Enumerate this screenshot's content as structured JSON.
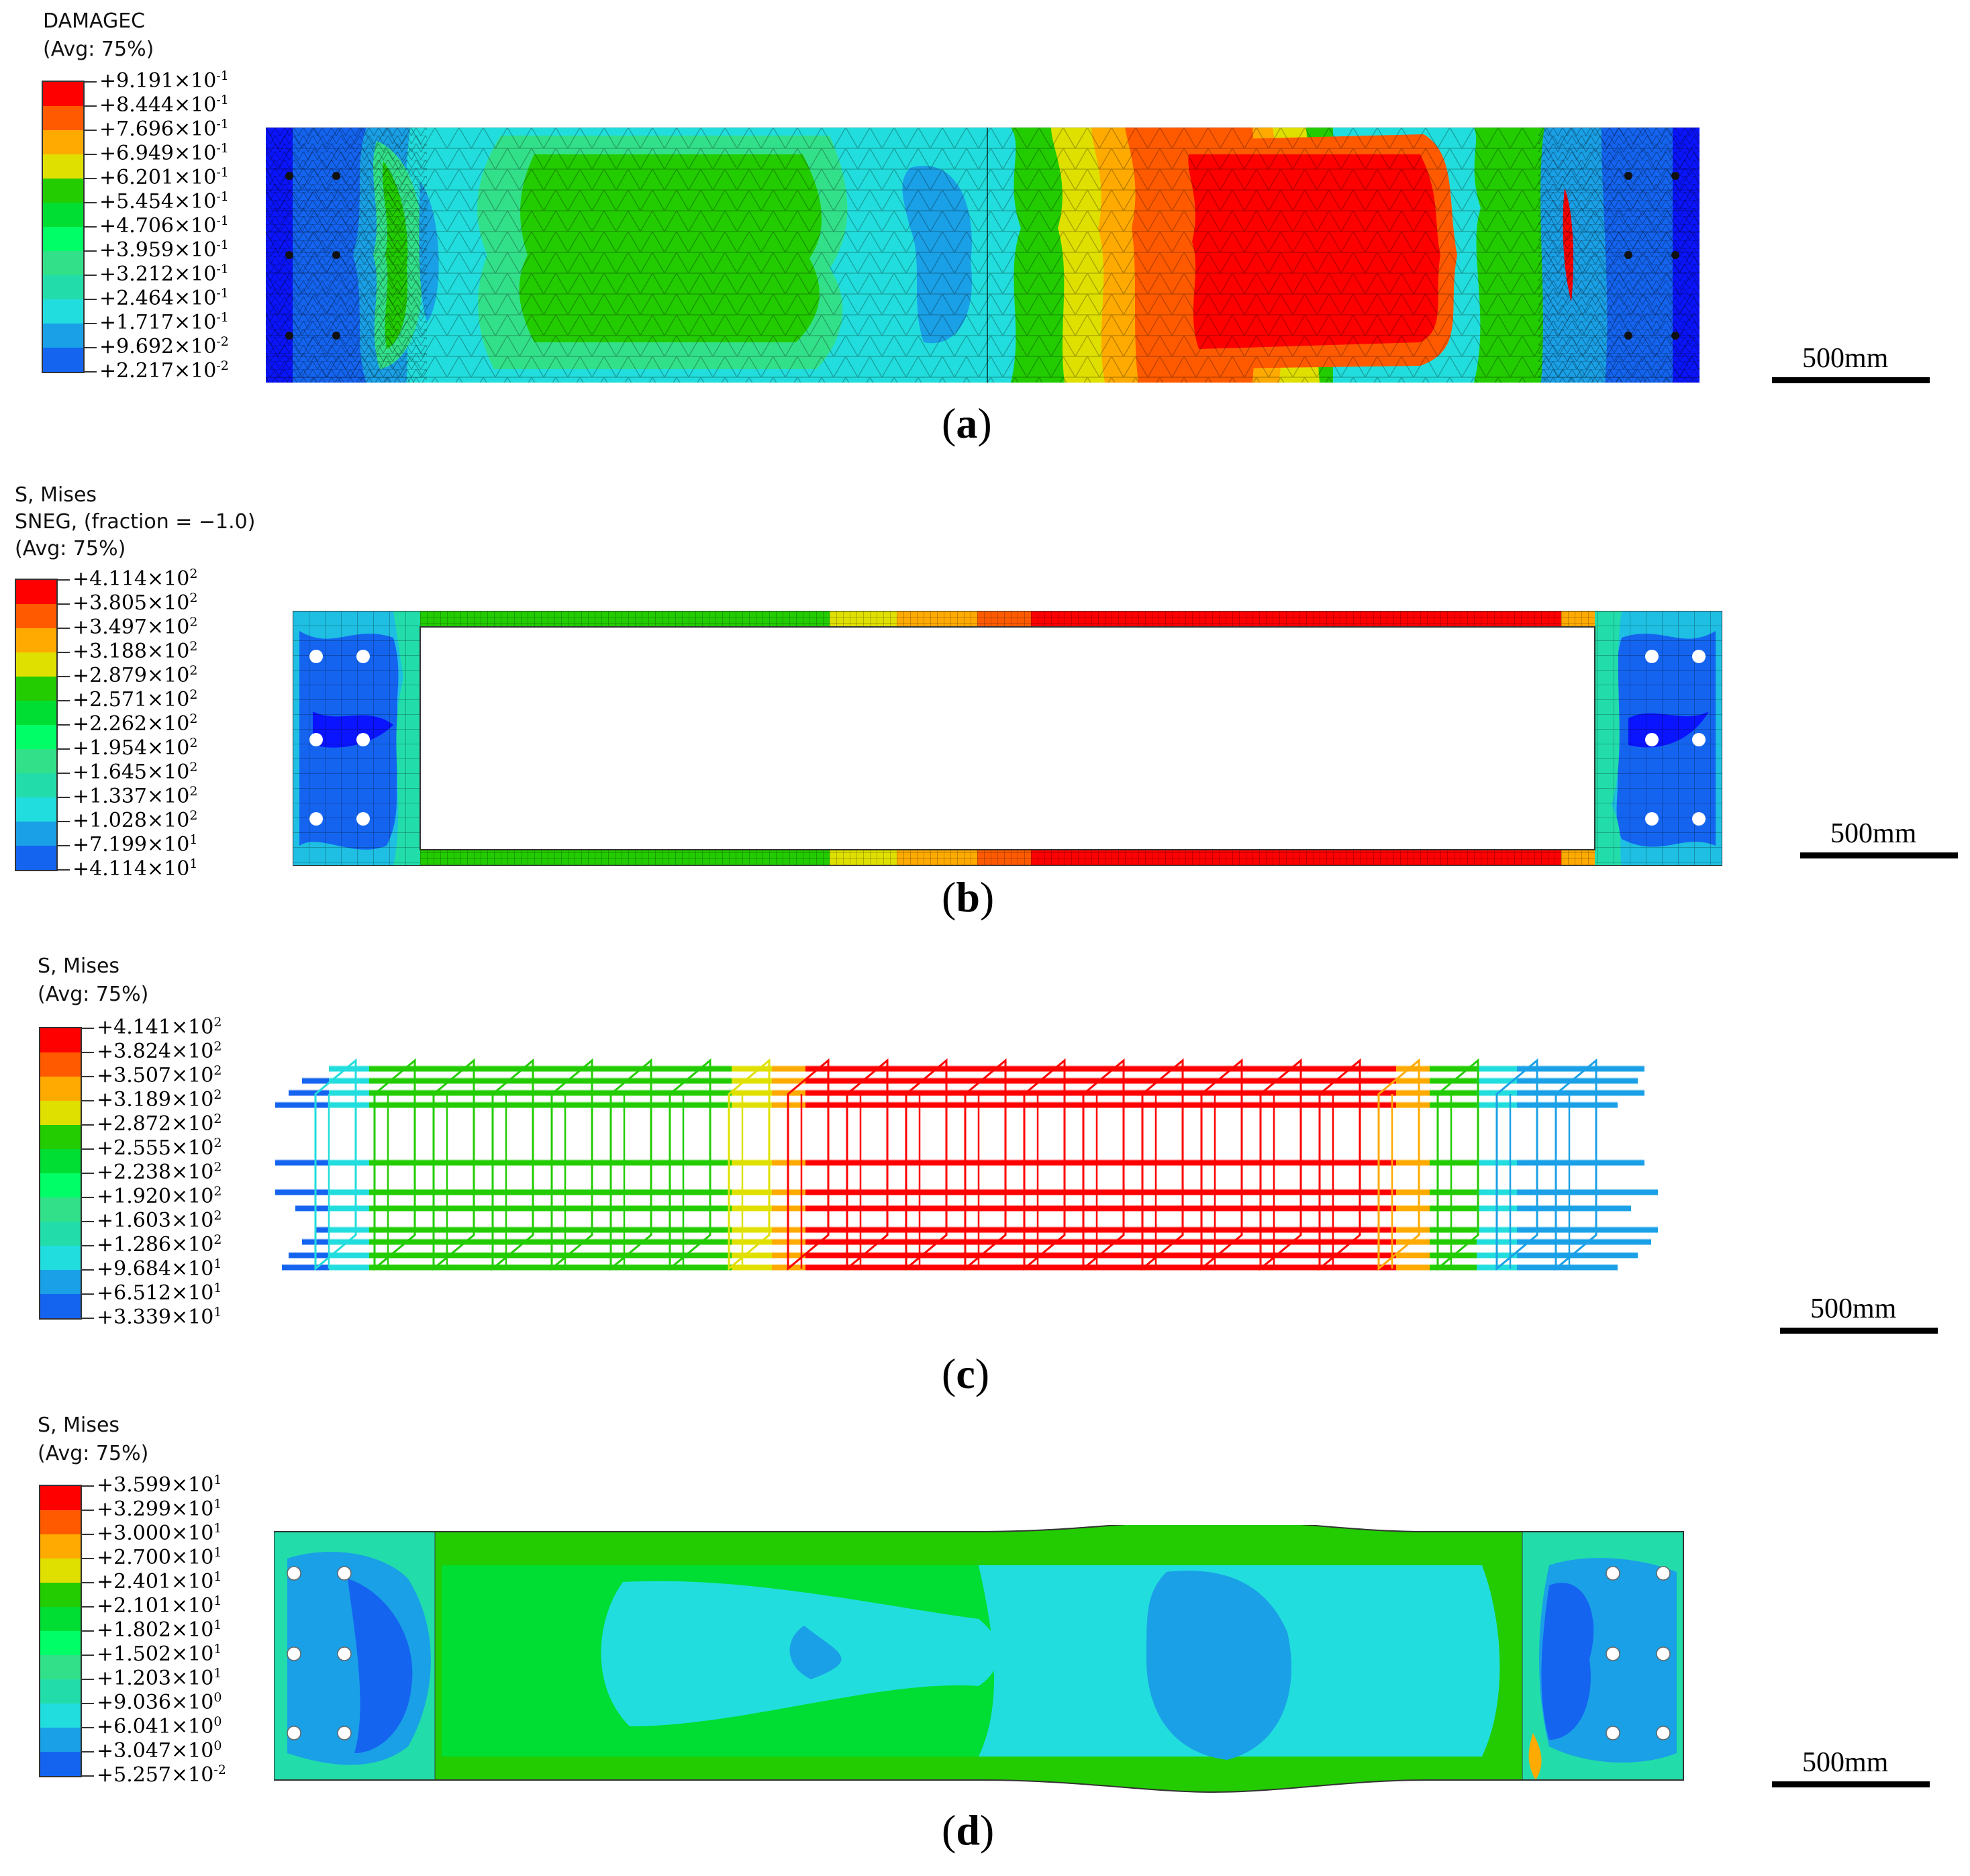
{
  "panels": [
    {
      "id": "a",
      "caption_letter": "a",
      "legend_header": [
        "DAMAGEC",
        "(Avg: 75%)"
      ],
      "legend_values": [
        "+9.191",
        "+8.444",
        "+7.696",
        "+6.949",
        "+6.201",
        "+5.454",
        "+4.706",
        "+3.959",
        "+3.212",
        "+2.464",
        "+1.717",
        "+9.692",
        "+2.217"
      ],
      "legend_exponents": [
        "-1",
        "-1",
        "-1",
        "-1",
        "-1",
        "-1",
        "-1",
        "-1",
        "-1",
        "-1",
        "-1",
        "-2",
        "-2"
      ],
      "legend_colors": [
        "#ff0000",
        "#ff5a00",
        "#ffaa00",
        "#e0e000",
        "#22cc00",
        "#00dd33",
        "#00ff66",
        "#33e08a",
        "#22ddaa",
        "#22dddd",
        "#1aa0e6",
        "#1464f0",
        "#0a14ff"
      ],
      "scale_label": "500mm"
    },
    {
      "id": "b",
      "caption_letter": "b",
      "legend_header": [
        "S, Mises",
        "SNEG, (fraction = −1.0)",
        "(Avg: 75%)"
      ],
      "legend_values": [
        "+4.114",
        "+3.805",
        "+3.497",
        "+3.188",
        "+2.879",
        "+2.571",
        "+2.262",
        "+1.954",
        "+1.645",
        "+1.337",
        "+1.028",
        "+7.199",
        "+4.114"
      ],
      "legend_exponents": [
        "2",
        "2",
        "2",
        "2",
        "2",
        "2",
        "2",
        "2",
        "2",
        "2",
        "2",
        "1",
        "1"
      ],
      "legend_colors": [
        "#ff0000",
        "#ff5a00",
        "#ffaa00",
        "#e0e000",
        "#22cc00",
        "#00dd33",
        "#00ff66",
        "#33e08a",
        "#22ddaa",
        "#22dddd",
        "#1aa0e6",
        "#1464f0",
        "#0a14ff"
      ],
      "scale_label": "500mm"
    },
    {
      "id": "c",
      "caption_letter": "c",
      "legend_header": [
        "S, Mises",
        "(Avg: 75%)"
      ],
      "legend_values": [
        "+4.141",
        "+3.824",
        "+3.507",
        "+3.189",
        "+2.872",
        "+2.555",
        "+2.238",
        "+1.920",
        "+1.603",
        "+1.286",
        "+9.684",
        "+6.512",
        "+3.339"
      ],
      "legend_exponents": [
        "2",
        "2",
        "2",
        "2",
        "2",
        "2",
        "2",
        "2",
        "2",
        "2",
        "1",
        "1",
        "1"
      ],
      "legend_colors": [
        "#ff0000",
        "#ff5a00",
        "#ffaa00",
        "#e0e000",
        "#22cc00",
        "#00dd33",
        "#00ff66",
        "#33e08a",
        "#22ddaa",
        "#22dddd",
        "#1aa0e6",
        "#1464f0",
        "#0a14ff"
      ],
      "scale_label": "500mm"
    },
    {
      "id": "d",
      "caption_letter": "d",
      "legend_header": [
        "S, Mises",
        "(Avg: 75%)"
      ],
      "legend_values": [
        "+3.599",
        "+3.299",
        "+3.000",
        "+2.700",
        "+2.401",
        "+2.101",
        "+1.802",
        "+1.502",
        "+1.203",
        "+9.036",
        "+6.041",
        "+3.047",
        "+5.257"
      ],
      "legend_exponents": [
        "1",
        "1",
        "1",
        "1",
        "1",
        "1",
        "1",
        "1",
        "1",
        "0",
        "0",
        "0",
        "-2"
      ],
      "legend_colors": [
        "#ff0000",
        "#ff5a00",
        "#ffaa00",
        "#e0e000",
        "#22cc00",
        "#00dd33",
        "#00ff66",
        "#33e08a",
        "#22ddaa",
        "#22dddd",
        "#1aa0e6",
        "#1464f0",
        "#0a14ff"
      ],
      "scale_label": "500mm"
    }
  ],
  "times_symbol": "×",
  "base_ten": "10"
}
